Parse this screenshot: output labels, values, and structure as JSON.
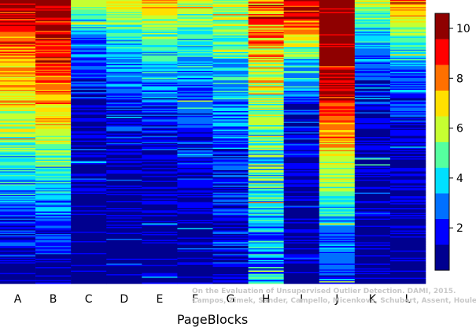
{
  "chart_data": {
    "type": "heatmap",
    "xlabel": "PageBlocks",
    "categories": [
      "A",
      "B",
      "C",
      "D",
      "E",
      "F",
      "G",
      "H",
      "I",
      "J",
      "K",
      "L"
    ],
    "colorbar": {
      "min": 0.3,
      "max": 10.6,
      "ticks": [
        "2",
        "4",
        "6",
        "8",
        "10"
      ],
      "tick_values": [
        2,
        4,
        6,
        8,
        10
      ]
    },
    "colormap": [
      "#00008f",
      "#0000ff",
      "#0070ff",
      "#00e0ff",
      "#55ff9f",
      "#c6ff31",
      "#ffe000",
      "#ff7000",
      "#ff0000",
      "#8f0000"
    ],
    "columns_profile": [
      {
        "name": "A",
        "stops": [
          [
            0,
            9.6
          ],
          [
            0.12,
            8.5
          ],
          [
            0.3,
            7.2
          ],
          [
            0.45,
            5.6
          ],
          [
            0.6,
            4.0
          ],
          [
            0.75,
            2.5
          ],
          [
            0.9,
            1.2
          ],
          [
            1,
            0.6
          ]
        ],
        "noise": 1.6
      },
      {
        "name": "B",
        "stops": [
          [
            0,
            10.2
          ],
          [
            0.15,
            9.0
          ],
          [
            0.35,
            7.6
          ],
          [
            0.5,
            5.8
          ],
          [
            0.65,
            4.0
          ],
          [
            0.8,
            2.4
          ],
          [
            0.92,
            1.1
          ],
          [
            1,
            0.6
          ]
        ],
        "noise": 1.5
      },
      {
        "name": "C",
        "stops": [
          [
            0,
            6.0
          ],
          [
            0.08,
            4.0
          ],
          [
            0.2,
            2.4
          ],
          [
            0.4,
            1.2
          ],
          [
            0.7,
            0.8
          ],
          [
            1,
            0.5
          ]
        ],
        "noise": 1.4
      },
      {
        "name": "D",
        "stops": [
          [
            0,
            7.2
          ],
          [
            0.1,
            4.8
          ],
          [
            0.25,
            3.0
          ],
          [
            0.45,
            1.5
          ],
          [
            0.7,
            0.8
          ],
          [
            1,
            0.5
          ]
        ],
        "noise": 1.3
      },
      {
        "name": "E",
        "stops": [
          [
            0,
            7.6
          ],
          [
            0.12,
            5.0
          ],
          [
            0.3,
            3.0
          ],
          [
            0.5,
            1.5
          ],
          [
            0.75,
            0.9
          ],
          [
            1,
            0.6
          ]
        ],
        "noise": 1.4
      },
      {
        "name": "F",
        "stops": [
          [
            0,
            5.8
          ],
          [
            0.15,
            4.0
          ],
          [
            0.35,
            2.4
          ],
          [
            0.6,
            1.3
          ],
          [
            1,
            0.7
          ]
        ],
        "noise": 1.5
      },
      {
        "name": "G",
        "stops": [
          [
            0,
            6.0
          ],
          [
            0.15,
            4.8
          ],
          [
            0.35,
            3.2
          ],
          [
            0.6,
            1.8
          ],
          [
            1,
            1.0
          ]
        ],
        "noise": 1.7
      },
      {
        "name": "H",
        "stops": [
          [
            0,
            8.2
          ],
          [
            0.2,
            7.0
          ],
          [
            0.4,
            5.5
          ],
          [
            0.6,
            4.4
          ],
          [
            0.8,
            3.6
          ],
          [
            1,
            3.0
          ]
        ],
        "noise": 2.4
      },
      {
        "name": "I",
        "stops": [
          [
            0,
            10.0
          ],
          [
            0.08,
            8.4
          ],
          [
            0.2,
            4.5
          ],
          [
            0.35,
            2.0
          ],
          [
            0.6,
            1.0
          ],
          [
            1,
            0.6
          ]
        ],
        "noise": 1.6
      },
      {
        "name": "J",
        "stops": [
          [
            0,
            10.6
          ],
          [
            0.2,
            10.2
          ],
          [
            0.35,
            9.2
          ],
          [
            0.5,
            7.2
          ],
          [
            0.65,
            5.2
          ],
          [
            0.8,
            3.2
          ],
          [
            1,
            2.0
          ]
        ],
        "noise": 1.3
      },
      {
        "name": "K",
        "stops": [
          [
            0,
            6.0
          ],
          [
            0.08,
            4.4
          ],
          [
            0.2,
            2.6
          ],
          [
            0.4,
            1.4
          ],
          [
            0.7,
            0.8
          ],
          [
            1,
            0.5
          ]
        ],
        "noise": 1.4
      },
      {
        "name": "L",
        "stops": [
          [
            0,
            8.2
          ],
          [
            0.1,
            5.6
          ],
          [
            0.25,
            3.0
          ],
          [
            0.45,
            1.6
          ],
          [
            0.7,
            0.9
          ],
          [
            1,
            0.5
          ]
        ],
        "noise": 1.4
      }
    ]
  },
  "watermark": {
    "line1": "On the Evaluation of Unsupervised Outlier Detection. DAMI, 2015.",
    "line2": "Campos, Zimek, Sander, Campello, Micenková, Schubert, Assent, Houle"
  }
}
